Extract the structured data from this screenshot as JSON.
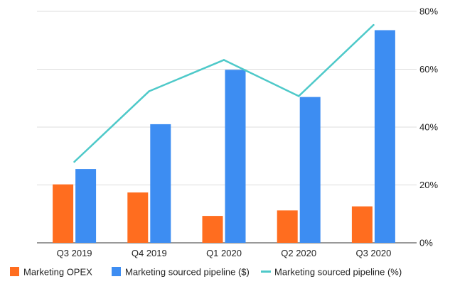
{
  "chart_data": {
    "type": "bar",
    "categories": [
      "Q3 2019",
      "Q4 2019",
      "Q1 2020",
      "Q2 2020",
      "Q3 2020"
    ],
    "series": [
      {
        "name": "Marketing OPEX",
        "kind": "bar",
        "color": "#ff6d1f",
        "values": [
          20.2,
          17.4,
          9.3,
          11.2,
          12.6
        ]
      },
      {
        "name": "Marketing sourced pipeline ($)",
        "kind": "bar",
        "color": "#3d8df2",
        "values": [
          25.5,
          41,
          59.8,
          50.4,
          73.5
        ]
      },
      {
        "name": "Marketing sourced pipeline (%)",
        "kind": "line",
        "color": "#4ec9c9",
        "values": [
          28,
          52.4,
          63.2,
          50.7,
          75.3
        ]
      }
    ],
    "y_axis": {
      "position": "right",
      "ylim": [
        0,
        80
      ],
      "ticks": [
        0,
        20,
        40,
        60,
        80
      ],
      "tick_labels": [
        "0%",
        "20%",
        "40%",
        "60%",
        "80%"
      ]
    },
    "title": "",
    "xlabel": "",
    "ylabel": "",
    "grid": true,
    "legend_position": "bottom-left"
  }
}
